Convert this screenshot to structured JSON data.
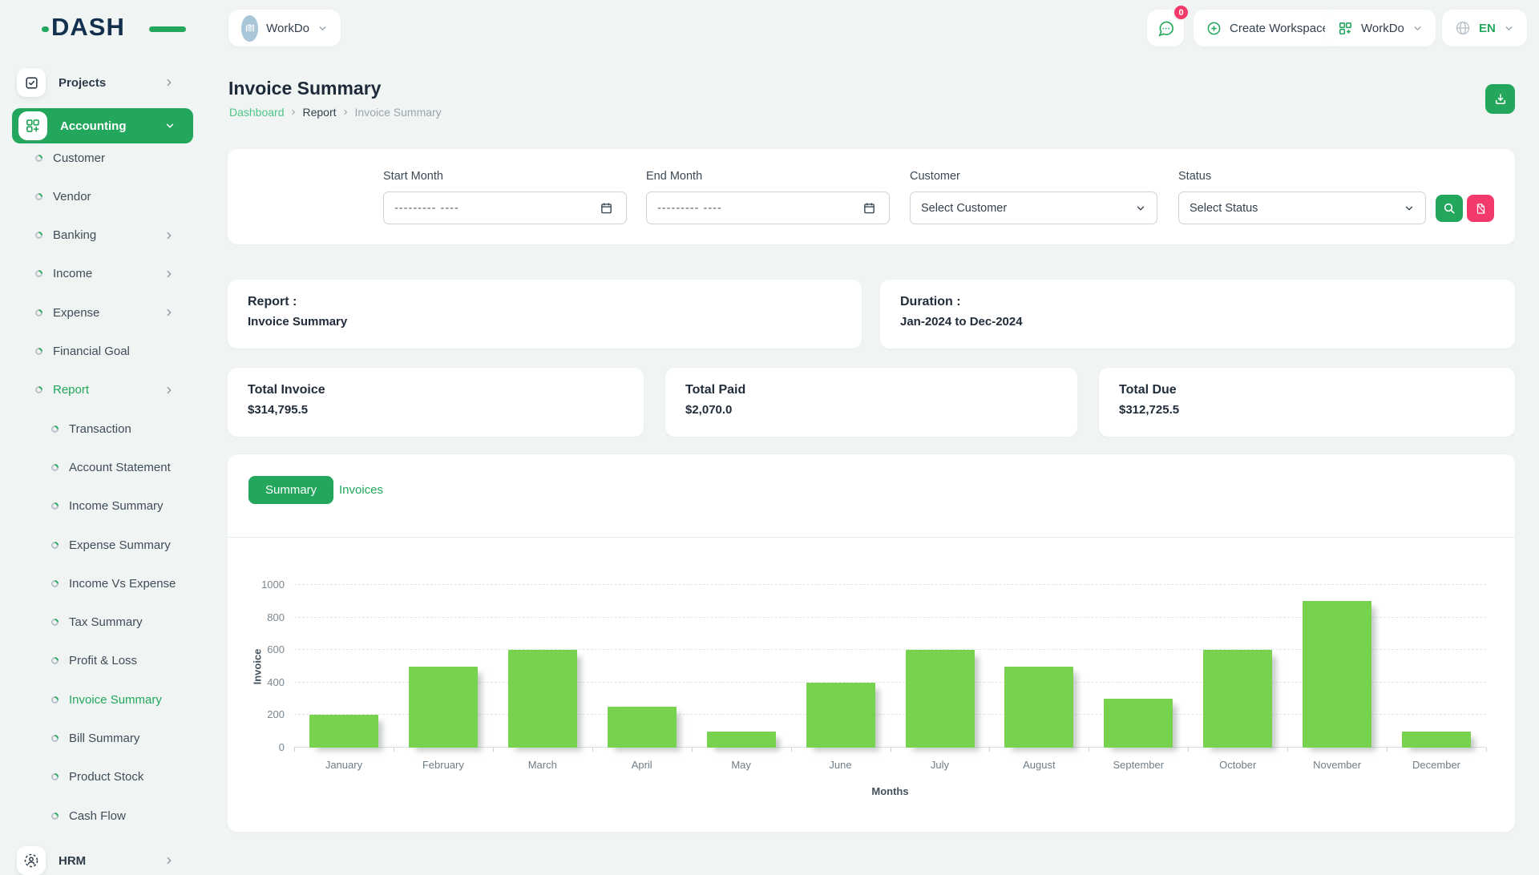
{
  "brand": {
    "logo_text": "DASH"
  },
  "header": {
    "workspace_selector": {
      "label": "WorkDo"
    },
    "messages_badge": "0",
    "create_workspace_label": "Create Workspace",
    "workspace_dropdown_label": "WorkDo",
    "language": "EN"
  },
  "sidebar": {
    "items": [
      {
        "label": "Projects",
        "level": "top",
        "icon": "checkbox",
        "chevron": "right"
      },
      {
        "label": "Accounting",
        "level": "top",
        "icon": "grid-plus",
        "chevron": "down",
        "active": true
      },
      {
        "label": "Customer",
        "level": "sub"
      },
      {
        "label": "Vendor",
        "level": "sub"
      },
      {
        "label": "Banking",
        "level": "sub",
        "chevron": "right"
      },
      {
        "label": "Income",
        "level": "sub",
        "chevron": "right"
      },
      {
        "label": "Expense",
        "level": "sub",
        "chevron": "right"
      },
      {
        "label": "Financial Goal",
        "level": "sub"
      },
      {
        "label": "Report",
        "level": "sub",
        "chevron": "right",
        "active": true
      },
      {
        "label": "Transaction",
        "level": "subsub"
      },
      {
        "label": "Account Statement",
        "level": "subsub"
      },
      {
        "label": "Income Summary",
        "level": "subsub"
      },
      {
        "label": "Expense Summary",
        "level": "subsub"
      },
      {
        "label": "Income Vs Expense",
        "level": "subsub"
      },
      {
        "label": "Tax Summary",
        "level": "subsub"
      },
      {
        "label": "Profit & Loss",
        "level": "subsub"
      },
      {
        "label": "Invoice Summary",
        "level": "subsub",
        "active": true
      },
      {
        "label": "Bill Summary",
        "level": "subsub"
      },
      {
        "label": "Product Stock",
        "level": "subsub"
      },
      {
        "label": "Cash Flow",
        "level": "subsub"
      },
      {
        "label": "HRM",
        "level": "top",
        "icon": "hrm",
        "chevron": "right"
      }
    ]
  },
  "page": {
    "title": "Invoice Summary",
    "breadcrumb": [
      "Dashboard",
      "Report",
      "Invoice Summary"
    ]
  },
  "filters": {
    "start_month_label": "Start Month",
    "start_month_placeholder": "--------- ----",
    "end_month_label": "End Month",
    "end_month_placeholder": "--------- ----",
    "customer_label": "Customer",
    "customer_value": "Select Customer",
    "status_label": "Status",
    "status_value": "Select Status"
  },
  "report_card": {
    "label": "Report :",
    "value": "Invoice Summary"
  },
  "duration_card": {
    "label": "Duration :",
    "value": "Jan-2024 to Dec-2024"
  },
  "totals": [
    {
      "label": "Total Invoice",
      "value": "$314,795.5"
    },
    {
      "label": "Total Paid",
      "value": "$2,070.0"
    },
    {
      "label": "Total Due",
      "value": "$312,725.5"
    }
  ],
  "tabs": [
    {
      "label": "Summary",
      "active": true
    },
    {
      "label": "Invoices",
      "active": false
    }
  ],
  "chart_data": {
    "type": "bar",
    "title": "",
    "categories": [
      "January",
      "February",
      "March",
      "April",
      "May",
      "June",
      "July",
      "August",
      "September",
      "October",
      "November",
      "December"
    ],
    "values": [
      200,
      500,
      600,
      250,
      100,
      400,
      600,
      500,
      300,
      600,
      900,
      100
    ],
    "xlabel": "Months",
    "ylabel": "Invoice",
    "ylim": [
      0,
      1000
    ],
    "yticks": [
      0,
      200,
      400,
      600,
      800,
      1000
    ],
    "grid": "dashed-horizontal",
    "bar_color": "#77d34f",
    "legend": "none"
  },
  "colors": {
    "accent_green": "#22a75c",
    "link_green": "#4dc686",
    "pink": "#f43a6a",
    "bar_green": "#77d34f",
    "logo_navy": "#13304e",
    "page_background": "#f0f4f3"
  }
}
